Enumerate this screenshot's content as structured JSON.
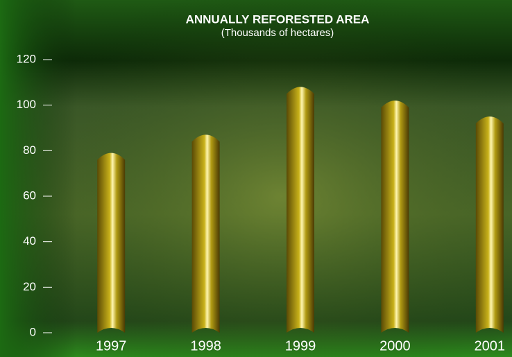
{
  "chart_data": {
    "type": "bar",
    "title": "ANNUALLY REFORESTED AREA",
    "subtitle": "(Thousands of hectares)",
    "categories": [
      "1997",
      "1998",
      "1999",
      "2000",
      "2001"
    ],
    "values": [
      79,
      87,
      108,
      102,
      95
    ],
    "color": "#c9b21a",
    "ylim": [
      0,
      120
    ],
    "yticks": [
      0,
      20,
      40,
      60,
      80,
      100,
      120
    ],
    "grid": false
  }
}
